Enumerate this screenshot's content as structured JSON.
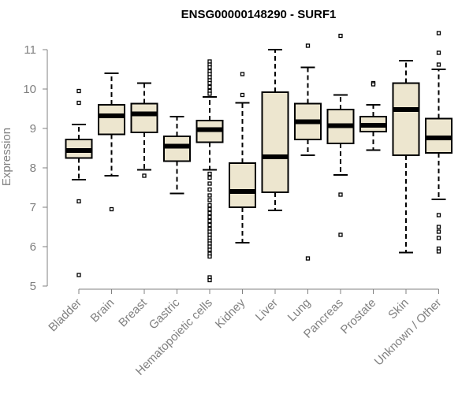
{
  "chart_data": {
    "type": "box",
    "title": "ENSG00000148290 - SURF1",
    "xlabel": "",
    "ylabel": "Expression",
    "ylim": [
      5,
      11
    ],
    "yticks": [
      "5",
      "6",
      "7",
      "8",
      "9",
      "10",
      "11"
    ],
    "colors": {
      "box_fill": "#ede6cf",
      "stroke": "#000000",
      "axis": "#808080"
    },
    "categories": [
      "Bladder",
      "Brain",
      "Breast",
      "Gastric",
      "Hematopoietic cells",
      "Kidney",
      "Liver",
      "Lung",
      "Pancreas",
      "Prostate",
      "Skin",
      "Unknown / Other"
    ],
    "boxes": [
      {
        "category": "Bladder",
        "whisker_low": 7.7,
        "q1": 8.25,
        "median": 8.44,
        "q3": 8.72,
        "whisker_high": 9.1,
        "outliers": [
          9.95,
          9.65,
          7.15,
          5.28
        ]
      },
      {
        "category": "Brain",
        "whisker_low": 7.8,
        "q1": 8.85,
        "median": 9.32,
        "q3": 9.6,
        "whisker_high": 10.4,
        "outliers": [
          6.95
        ]
      },
      {
        "category": "Breast",
        "whisker_low": 7.95,
        "q1": 8.9,
        "median": 9.37,
        "q3": 9.63,
        "whisker_high": 10.15,
        "outliers": [
          7.8
        ]
      },
      {
        "category": "Gastric",
        "whisker_low": 7.35,
        "q1": 8.17,
        "median": 8.55,
        "q3": 8.8,
        "whisker_high": 9.3,
        "outliers": []
      },
      {
        "category": "Hematopoietic cells",
        "whisker_low": 7.95,
        "q1": 8.65,
        "median": 8.97,
        "q3": 9.2,
        "whisker_high": 9.8,
        "outliers": [
          10.7,
          10.62,
          10.55,
          10.45,
          10.38,
          10.3,
          10.22,
          10.15,
          10.05,
          9.95,
          9.88,
          7.85,
          7.75,
          7.6,
          7.45,
          7.3,
          7.18,
          7.05,
          6.95,
          6.85,
          6.75,
          6.65,
          6.55,
          6.45,
          6.38,
          6.3,
          6.22,
          6.15,
          6.08,
          6.0,
          5.92,
          5.82,
          5.75,
          5.22,
          5.15
        ]
      },
      {
        "category": "Kidney",
        "whisker_low": 6.1,
        "q1": 7.0,
        "median": 7.4,
        "q3": 8.12,
        "whisker_high": 9.65,
        "outliers": [
          10.38,
          9.85
        ]
      },
      {
        "category": "Liver",
        "whisker_low": 6.92,
        "q1": 7.38,
        "median": 8.28,
        "q3": 9.92,
        "whisker_high": 11.0,
        "outliers": []
      },
      {
        "category": "Lung",
        "whisker_low": 8.32,
        "q1": 8.72,
        "median": 9.17,
        "q3": 9.63,
        "whisker_high": 10.55,
        "outliers": [
          11.1,
          5.7
        ]
      },
      {
        "category": "Pancreas",
        "whisker_low": 7.82,
        "q1": 8.62,
        "median": 9.07,
        "q3": 9.48,
        "whisker_high": 9.85,
        "outliers": [
          11.35,
          7.32,
          6.3
        ]
      },
      {
        "category": "Prostate",
        "whisker_low": 8.45,
        "q1": 8.92,
        "median": 9.08,
        "q3": 9.3,
        "whisker_high": 9.6,
        "outliers": [
          10.15,
          10.12
        ]
      },
      {
        "category": "Skin",
        "whisker_low": 5.85,
        "q1": 8.32,
        "median": 9.48,
        "q3": 10.15,
        "whisker_high": 10.72,
        "outliers": []
      },
      {
        "category": "Unknown / Other",
        "whisker_low": 7.2,
        "q1": 8.38,
        "median": 8.76,
        "q3": 9.25,
        "whisker_high": 10.5,
        "outliers": [
          11.42,
          10.92,
          10.62,
          6.8,
          6.5,
          6.38,
          6.22,
          5.95,
          5.88
        ]
      }
    ]
  }
}
